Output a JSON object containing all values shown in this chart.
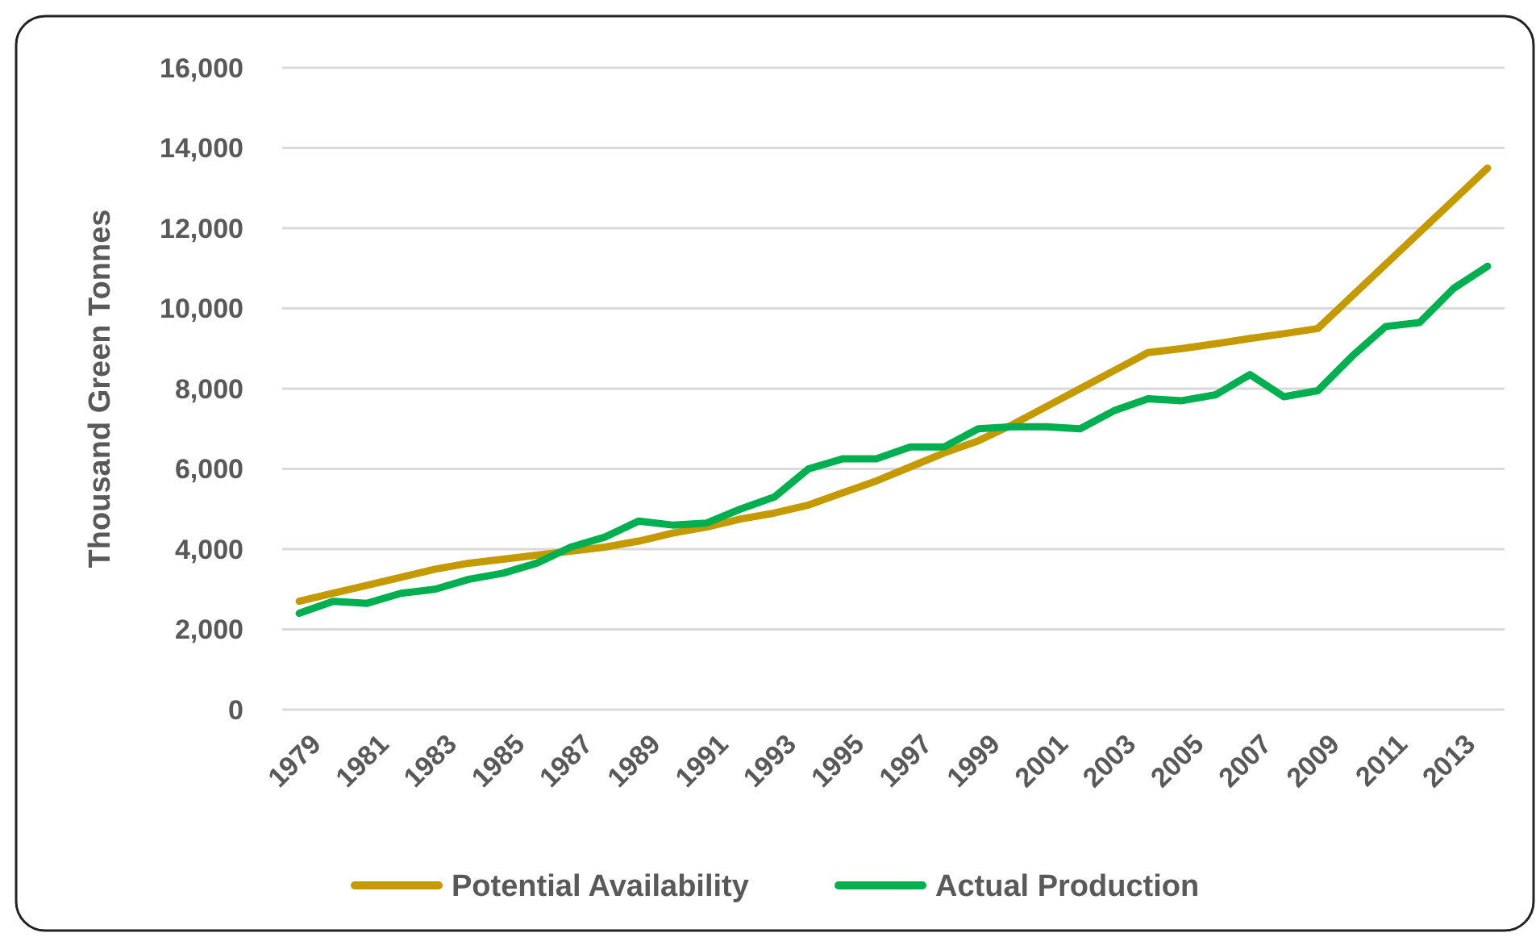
{
  "chart_data": {
    "type": "line",
    "ylabel": "Thousand Green Tonnes",
    "categories": [
      "1979",
      null,
      "1981",
      null,
      "1983",
      null,
      "1985",
      null,
      "1987",
      null,
      "1989",
      null,
      "1991",
      null,
      "1993",
      null,
      "1995",
      null,
      "1997",
      null,
      "1999",
      null,
      "2001",
      null,
      "2003",
      null,
      "2005",
      null,
      "2007",
      null,
      "2009",
      null,
      "2011",
      null,
      "2013",
      null
    ],
    "series": [
      {
        "name": "Potential Availability",
        "color": "#c49a00",
        "values": [
          2700,
          2900,
          3100,
          3300,
          3500,
          3650,
          3750,
          3850,
          3950,
          4050,
          4200,
          4400,
          4550,
          4750,
          4900,
          5100,
          5400,
          5700,
          6050,
          6400,
          6700,
          7100,
          7550,
          8000,
          8450,
          8900,
          9000,
          9120,
          9250,
          9370,
          9500,
          10300,
          11100,
          11900,
          12700,
          13500
        ]
      },
      {
        "name": "Actual Production",
        "color": "#00b050",
        "values": [
          2400,
          2700,
          2650,
          2900,
          3000,
          3250,
          3400,
          3650,
          4050,
          4300,
          4700,
          4600,
          4650,
          5000,
          5300,
          6000,
          6250,
          6250,
          6550,
          6550,
          7000,
          7050,
          7050,
          7000,
          7450,
          7750,
          7700,
          7850,
          8350,
          7800,
          7950,
          8800,
          9550,
          9650,
          10500,
          11050
        ]
      }
    ],
    "ylim": [
      0,
      16000
    ],
    "yticks": [
      {
        "value": 0,
        "label": "0"
      },
      {
        "value": 2000,
        "label": "2,000"
      },
      {
        "value": 4000,
        "label": "4,000"
      },
      {
        "value": 6000,
        "label": "6,000"
      },
      {
        "value": 8000,
        "label": "8,000"
      },
      {
        "value": 10000,
        "label": "10,000"
      },
      {
        "value": 12000,
        "label": "12,000"
      },
      {
        "value": 14000,
        "label": "14,000"
      },
      {
        "value": 16000,
        "label": "16,000"
      }
    ],
    "grid": "y",
    "legend": "bottom",
    "marker": "none",
    "line_style": "solid"
  }
}
